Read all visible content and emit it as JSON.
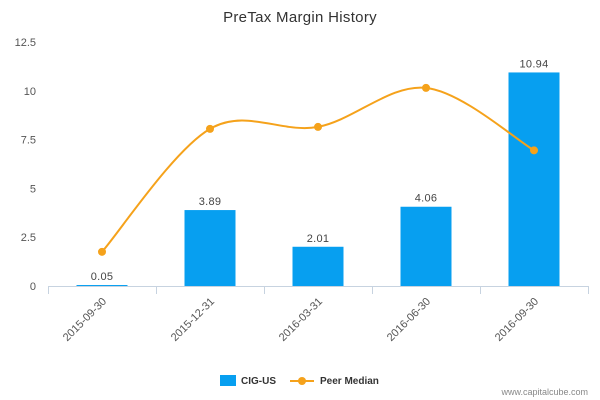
{
  "chart_data": {
    "type": "bar",
    "title": "PreTax Margin History",
    "categories": [
      "2015-09-30",
      "2015-12-31",
      "2016-03-31",
      "2016-06-30",
      "2016-09-30"
    ],
    "ylim": [
      0,
      12.5
    ],
    "yticks": [
      "0",
      "2.5",
      "5",
      "7.5",
      "10",
      "12.5"
    ],
    "grid": false,
    "legend_position": "bottom-center",
    "series": [
      {
        "name": "CIG-US",
        "type": "bar",
        "color": "#079ff0",
        "values": [
          0.05,
          3.89,
          2.01,
          4.06,
          10.94
        ],
        "labels": [
          "0.05",
          "3.89",
          "2.01",
          "4.06",
          "10.94"
        ]
      },
      {
        "name": "Peer Median",
        "type": "line",
        "color": "#f5a21b",
        "values": [
          1.75,
          8.05,
          8.15,
          10.15,
          6.95
        ]
      }
    ]
  },
  "source": "www.capitalcube.com"
}
